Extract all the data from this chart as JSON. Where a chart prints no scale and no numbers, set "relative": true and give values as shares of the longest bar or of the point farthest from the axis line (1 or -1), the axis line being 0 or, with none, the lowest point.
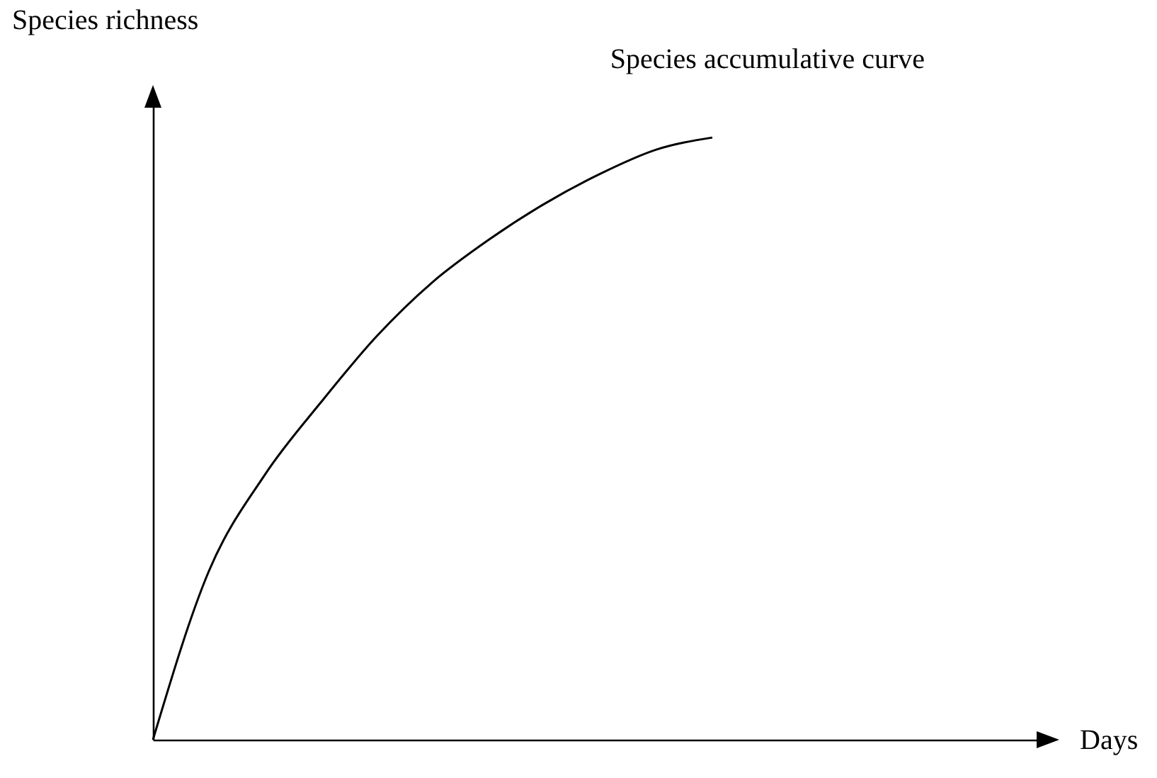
{
  "chart_data": {
    "type": "line",
    "relative": true,
    "xlabel": "Days",
    "ylabel": "Species richness",
    "tick_labels": false,
    "grid": false,
    "marker": "none",
    "line_style": "solid",
    "categories": [
      null,
      null,
      null,
      null,
      null,
      null,
      null,
      null,
      null,
      null,
      null,
      null,
      null,
      null,
      null,
      null,
      null
    ],
    "series": [
      {
        "name": "Species accumulative curve",
        "color": "#000000",
        "values": [
          0,
          0.28,
          0.44,
          0.56,
          0.67,
          0.76,
          0.83,
          0.89,
          0.94,
          0.98,
          1.0,
          null,
          null,
          null,
          null,
          null,
          null
        ]
      }
    ]
  }
}
